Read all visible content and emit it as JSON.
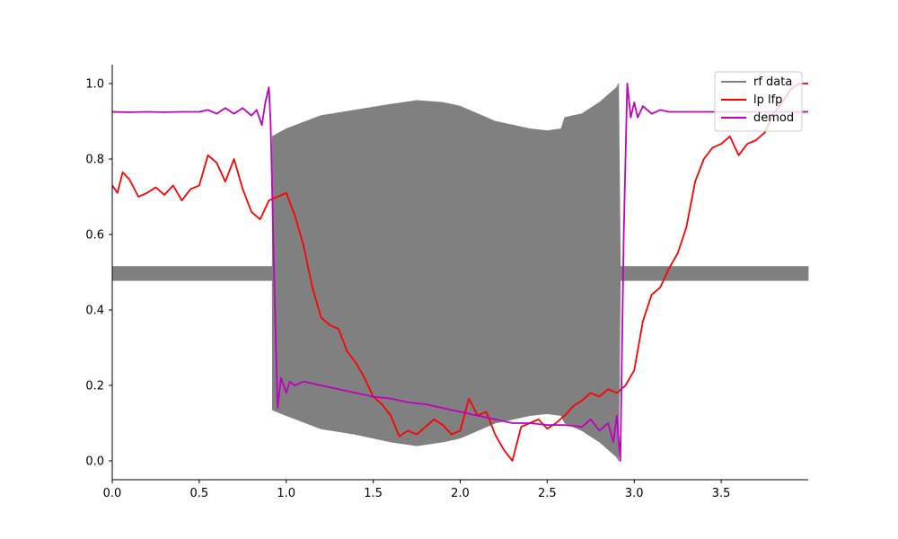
{
  "chart_data": {
    "type": "line",
    "xlim": [
      0.0,
      4.0
    ],
    "ylim": [
      -0.05,
      1.05
    ],
    "x_ticks": [
      0.0,
      0.5,
      1.0,
      1.5,
      2.0,
      2.5,
      3.0,
      3.5
    ],
    "x_tick_labels": [
      "0.0",
      "0.5",
      "1.0",
      "1.5",
      "2.0",
      "2.5",
      "3.0",
      "3.5"
    ],
    "y_ticks": [
      0.0,
      0.2,
      0.4,
      0.6,
      0.8,
      1.0
    ],
    "y_tick_labels": [
      "0.0",
      "0.2",
      "0.4",
      "0.6",
      "0.8",
      "1.0"
    ],
    "grid": false,
    "legend_position": "top-right",
    "series": [
      {
        "name": "rf data",
        "color": "#808080",
        "kind": "envelope-band",
        "x": [
          0.0,
          0.92,
          0.921,
          1.0,
          1.2,
          1.4,
          1.6,
          1.75,
          1.9,
          2.0,
          2.1,
          2.2,
          2.3,
          2.4,
          2.5,
          2.58,
          2.6,
          2.7,
          2.8,
          2.9,
          2.91,
          2.92,
          2.95,
          4.0
        ],
        "upper": [
          0.515,
          0.515,
          0.86,
          0.88,
          0.915,
          0.93,
          0.945,
          0.955,
          0.95,
          0.94,
          0.92,
          0.9,
          0.89,
          0.88,
          0.875,
          0.88,
          0.91,
          0.92,
          0.95,
          0.99,
          1.0,
          0.515,
          0.515,
          0.515
        ],
        "lower": [
          0.478,
          0.478,
          0.135,
          0.12,
          0.085,
          0.07,
          0.05,
          0.04,
          0.05,
          0.06,
          0.08,
          0.1,
          0.11,
          0.12,
          0.125,
          0.12,
          0.1,
          0.08,
          0.05,
          0.01,
          0.0,
          0.478,
          0.478,
          0.478
        ]
      },
      {
        "name": "lp lfp",
        "color": "#ff0000",
        "x": [
          0.0,
          0.03,
          0.06,
          0.1,
          0.15,
          0.2,
          0.25,
          0.3,
          0.35,
          0.4,
          0.45,
          0.5,
          0.55,
          0.6,
          0.65,
          0.7,
          0.75,
          0.8,
          0.85,
          0.9,
          0.95,
          1.0,
          1.05,
          1.1,
          1.15,
          1.2,
          1.25,
          1.3,
          1.35,
          1.4,
          1.45,
          1.5,
          1.55,
          1.6,
          1.65,
          1.7,
          1.75,
          1.8,
          1.85,
          1.9,
          1.95,
          2.0,
          2.05,
          2.1,
          2.15,
          2.2,
          2.25,
          2.3,
          2.35,
          2.4,
          2.45,
          2.5,
          2.55,
          2.6,
          2.65,
          2.7,
          2.75,
          2.8,
          2.85,
          2.9,
          2.95,
          3.0,
          3.05,
          3.1,
          3.15,
          3.2,
          3.25,
          3.3,
          3.35,
          3.4,
          3.45,
          3.5,
          3.55,
          3.6,
          3.65,
          3.7,
          3.75,
          3.8,
          3.85,
          3.9,
          3.95,
          4.0
        ],
        "values": [
          0.73,
          0.71,
          0.765,
          0.745,
          0.7,
          0.71,
          0.725,
          0.705,
          0.73,
          0.69,
          0.72,
          0.73,
          0.81,
          0.79,
          0.74,
          0.8,
          0.72,
          0.66,
          0.64,
          0.69,
          0.7,
          0.71,
          0.65,
          0.57,
          0.46,
          0.38,
          0.36,
          0.35,
          0.29,
          0.26,
          0.22,
          0.17,
          0.15,
          0.12,
          0.065,
          0.08,
          0.07,
          0.09,
          0.11,
          0.095,
          0.07,
          0.08,
          0.165,
          0.12,
          0.13,
          0.07,
          0.03,
          0.0,
          0.09,
          0.1,
          0.11,
          0.085,
          0.1,
          0.12,
          0.145,
          0.16,
          0.18,
          0.17,
          0.19,
          0.18,
          0.2,
          0.24,
          0.37,
          0.44,
          0.46,
          0.51,
          0.55,
          0.62,
          0.74,
          0.8,
          0.83,
          0.84,
          0.86,
          0.81,
          0.84,
          0.85,
          0.87,
          0.92,
          0.95,
          0.985,
          1.0,
          1.0
        ]
      },
      {
        "name": "demod",
        "color": "#c000c0",
        "x": [
          0.0,
          0.1,
          0.2,
          0.3,
          0.4,
          0.5,
          0.55,
          0.6,
          0.65,
          0.7,
          0.75,
          0.8,
          0.83,
          0.86,
          0.88,
          0.9,
          0.91,
          0.93,
          0.95,
          0.97,
          1.0,
          1.02,
          1.05,
          1.1,
          1.2,
          1.3,
          1.4,
          1.5,
          1.6,
          1.7,
          1.8,
          1.9,
          2.0,
          2.1,
          2.2,
          2.3,
          2.4,
          2.5,
          2.6,
          2.7,
          2.75,
          2.8,
          2.85,
          2.88,
          2.9,
          2.92,
          2.94,
          2.96,
          2.98,
          3.0,
          3.02,
          3.05,
          3.1,
          3.15,
          3.2,
          3.3,
          3.5,
          3.7,
          4.0
        ],
        "values": [
          0.925,
          0.924,
          0.925,
          0.924,
          0.925,
          0.925,
          0.93,
          0.92,
          0.935,
          0.92,
          0.935,
          0.915,
          0.93,
          0.89,
          0.95,
          0.99,
          0.9,
          0.5,
          0.14,
          0.22,
          0.18,
          0.21,
          0.2,
          0.21,
          0.2,
          0.19,
          0.18,
          0.17,
          0.165,
          0.155,
          0.15,
          0.14,
          0.13,
          0.12,
          0.11,
          0.1,
          0.1,
          0.095,
          0.095,
          0.09,
          0.11,
          0.08,
          0.1,
          0.05,
          0.12,
          0.0,
          0.6,
          1.0,
          0.91,
          0.95,
          0.91,
          0.94,
          0.92,
          0.93,
          0.925,
          0.925,
          0.925,
          0.925,
          0.925
        ]
      }
    ]
  }
}
